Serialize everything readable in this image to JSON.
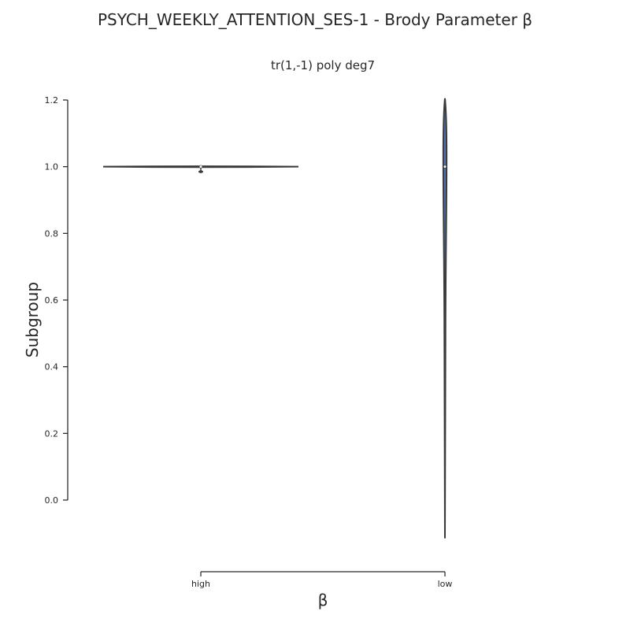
{
  "chart_data": {
    "type": "violin",
    "title": "PSYCH_WEEKLY_ATTENTION_SES-1 - Brody Parameter β",
    "subtitle": "tr(1,-1) poly deg7",
    "xlabel": "β",
    "ylabel": "Subgroup",
    "categories": [
      "high",
      "low"
    ],
    "ylim": [
      -0.12,
      1.2
    ],
    "yticks": [
      "0.0",
      "0.2",
      "0.4",
      "0.6",
      "0.8",
      "1.0",
      "1.2"
    ],
    "ytick_values": [
      0.0,
      0.2,
      0.4,
      0.6,
      0.8,
      1.0,
      1.2
    ],
    "violins": [
      {
        "category": "high",
        "median": 1.0,
        "min": 0.985,
        "max": 1.004,
        "max_half_width_fraction": 0.8
      },
      {
        "category": "low",
        "median": 1.0,
        "min": -0.115,
        "max": 1.205,
        "max_half_width_fraction": 0.012
      }
    ],
    "grid": false,
    "colors": {
      "violin_fill": "#4c72b0",
      "outline": "#3a3a3a",
      "axis": "#262626",
      "text": "#262626"
    }
  }
}
